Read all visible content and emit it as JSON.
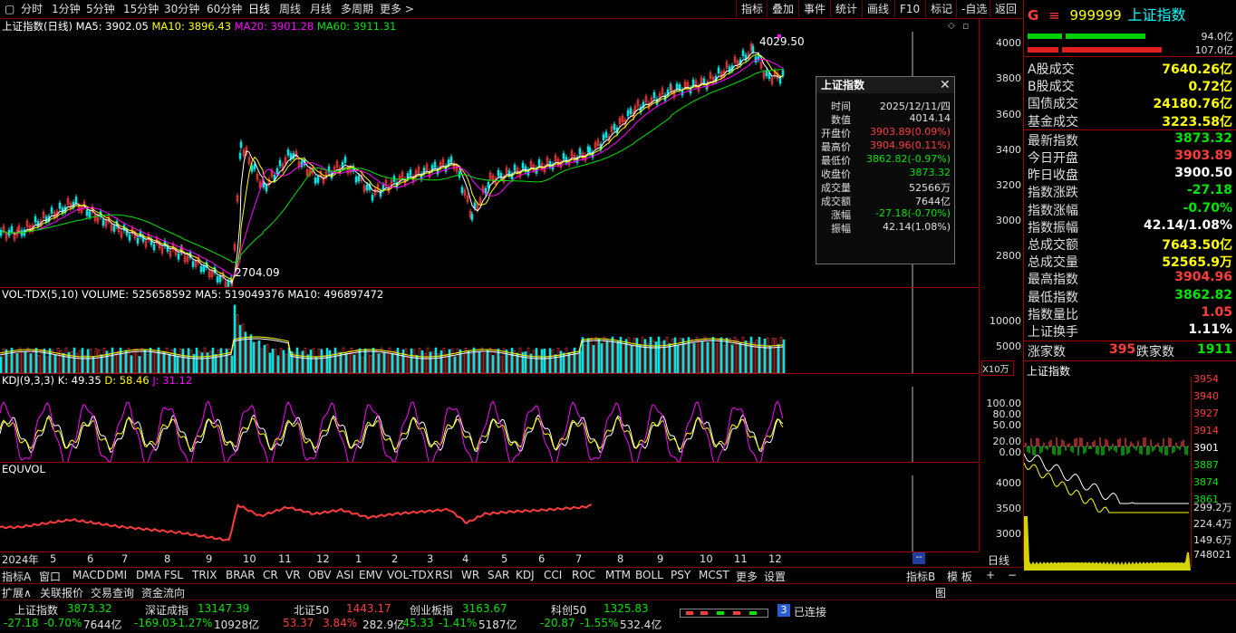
{
  "toolbar": {
    "periods": [
      "分时",
      "1分钟",
      "5分钟",
      "15分钟",
      "30分钟",
      "60分钟",
      "日线",
      "周线",
      "月线",
      "多周期",
      "更多 >"
    ],
    "active_period": "日线",
    "right_buttons": [
      "指标",
      "叠加",
      "事件",
      "统计",
      "画线",
      "F10",
      "标记",
      "-自选",
      "返回"
    ]
  },
  "main_chart": {
    "title": "上证指数(日线)",
    "ma5": "MA5: 3902.05",
    "ma10": "MA10: 3896.43",
    "ma20": "MA20: 3901.28",
    "ma60": "MA60: 3911.31",
    "high_label": "4029.50",
    "low_label": "2704.09",
    "y_ticks": [
      "4000",
      "3800",
      "3600",
      "3400",
      "3200",
      "3000",
      "2800"
    ]
  },
  "vol_chart": {
    "title": "VOL-TDX(5,10)",
    "volume": "VOLUME: 525658592",
    "ma5": "MA5: 519049376",
    "ma10": "MA10: 496897472",
    "y_ticks": [
      "10000",
      "5000"
    ],
    "unit": "X10万"
  },
  "kdj_chart": {
    "title": "KDJ(9,3,3)",
    "k": "K: 49.35",
    "d": "D: 58.46",
    "j": "J: 31.12",
    "y_ticks": [
      "100.00",
      "80.00",
      "50.00",
      "20.00",
      "0.00"
    ]
  },
  "equvol_chart": {
    "title": "EQUVOL",
    "y_ticks": [
      "4000",
      "3500",
      "3000"
    ]
  },
  "x_axis": {
    "labels": [
      "2024年",
      "5",
      "6",
      "7",
      "8",
      "9",
      "10",
      "11",
      "12",
      "1",
      "2",
      "3",
      "4",
      "5",
      "6",
      "7",
      "8",
      "9",
      "10",
      "11",
      "12"
    ],
    "period_label": "日线",
    "marker": "--"
  },
  "tooltip": {
    "title": "上证指数",
    "close_icon": "close-icon",
    "rows": [
      {
        "k": "时间",
        "v": "2025/12/11/四",
        "c": "#e0e0e0"
      },
      {
        "k": "数值",
        "v": "4014.14",
        "c": "#e0e0e0"
      },
      {
        "k": "开盘价",
        "v": "3903.89(0.09%)",
        "c": "#ff3c3c"
      },
      {
        "k": "最高价",
        "v": "3904.96(0.11%)",
        "c": "#ff3c3c"
      },
      {
        "k": "最低价",
        "v": "3862.82(-0.97%)",
        "c": "#00e400"
      },
      {
        "k": "收盘价",
        "v": "3873.32",
        "c": "#00e400"
      },
      {
        "k": "成交量",
        "v": "52566万",
        "c": "#e0e0e0"
      },
      {
        "k": "成交额",
        "v": "7644亿",
        "c": "#e0e0e0"
      },
      {
        "k": "涨幅",
        "v": "-27.18(-0.70%)",
        "c": "#00e400"
      },
      {
        "k": "振幅",
        "v": "42.14(1.08%)",
        "c": "#e0e0e0"
      }
    ]
  },
  "info": {
    "badge": "G",
    "code": "999999",
    "name": "上证指数",
    "bar1_value": "94.0亿",
    "bar2_value": "107.0亿",
    "rows": [
      {
        "label": "A股成交",
        "value": "7640.26亿",
        "color": "#ffff00"
      },
      {
        "label": "B股成交",
        "value": "0.72亿",
        "color": "#ffff00"
      },
      {
        "label": "国债成交",
        "value": "24180.76亿",
        "color": "#ffff00"
      },
      {
        "label": "基金成交",
        "value": "3223.58亿",
        "color": "#ffff00"
      },
      {
        "label": "最新指数",
        "value": "3873.32",
        "color": "#00e400"
      },
      {
        "label": "今日开盘",
        "value": "3903.89",
        "color": "#ff3c3c"
      },
      {
        "label": "昨日收盘",
        "value": "3900.50",
        "color": "#ffffff"
      },
      {
        "label": "指数涨跌",
        "value": "-27.18",
        "color": "#00e400"
      },
      {
        "label": "指数涨幅",
        "value": "-0.70%",
        "color": "#00e400"
      },
      {
        "label": "指数振幅",
        "value": "42.14/1.08%",
        "color": "#ffffff"
      },
      {
        "label": "总成交额",
        "value": "7643.50亿",
        "color": "#ffff00"
      },
      {
        "label": "总成交量",
        "value": "52565.9万",
        "color": "#ffff00"
      },
      {
        "label": "最高指数",
        "value": "3904.96",
        "color": "#ff3c3c"
      },
      {
        "label": "最低指数",
        "value": "3862.82",
        "color": "#00e400"
      },
      {
        "label": "指数量比",
        "value": "1.05",
        "color": "#ff3c3c"
      },
      {
        "label": "上证换手",
        "value": "1.11%",
        "color": "#ffffff"
      }
    ],
    "up_label": "涨家数",
    "up_count": "395",
    "down_label": "跌家数",
    "down_count": "1911",
    "mini_title": "上证指数",
    "mini_ticks": [
      "3954",
      "3940",
      "3927",
      "3914",
      "3901",
      "3887",
      "3874",
      "3861"
    ],
    "mini_vol_ticks": [
      "299.2万",
      "224.4万",
      "149.6万",
      "748021"
    ]
  },
  "indicators": [
    "指标A",
    "窗口",
    "MACD",
    "DMI",
    "DMA",
    "FSL",
    "TRIX",
    "BRAR",
    "CR",
    "VR",
    "OBV",
    "ASI",
    "EMV",
    "VOL-TDX",
    "RSI",
    "WR",
    "SAR",
    "KDJ",
    "CCI",
    "ROC",
    "MTM",
    "BOLL",
    "PSY",
    "MCST",
    "更多",
    "设置"
  ],
  "indicator_right": [
    "指标B",
    "模 板",
    "+",
    "−"
  ],
  "nav": [
    "扩展∧",
    "关联报价",
    "交易查询",
    "资金流向"
  ],
  "nav_right": "图",
  "status": [
    {
      "name": "上证指数",
      "price": "3873.32",
      "chg": "-27.18",
      "pct": "-0.70%",
      "amt": "7644亿",
      "pc": "#00e400",
      "cc": "#00e400"
    },
    {
      "name": "深证成指",
      "price": "13147.39",
      "chg": "-169.03",
      "pct": "-1.27%",
      "amt": "10928亿",
      "pc": "#00e400",
      "cc": "#00e400"
    },
    {
      "name": "北证50",
      "price": "1443.17",
      "chg": "53.37",
      "pct": "3.84%",
      "amt": "282.9亿",
      "pc": "#ff3c3c",
      "cc": "#ff3c3c"
    },
    {
      "name": "创业板指",
      "price": "3163.67",
      "chg": "-45.33",
      "pct": "-1.41%",
      "amt": "5187亿",
      "pc": "#00e400",
      "cc": "#00e400"
    },
    {
      "name": "科创50",
      "price": "1325.83",
      "chg": "-20.87",
      "pct": "-1.55%",
      "amt": "532.4亿",
      "pc": "#00e400",
      "cc": "#00e400"
    }
  ],
  "connection": {
    "badge": "3",
    "text": "已连接"
  }
}
